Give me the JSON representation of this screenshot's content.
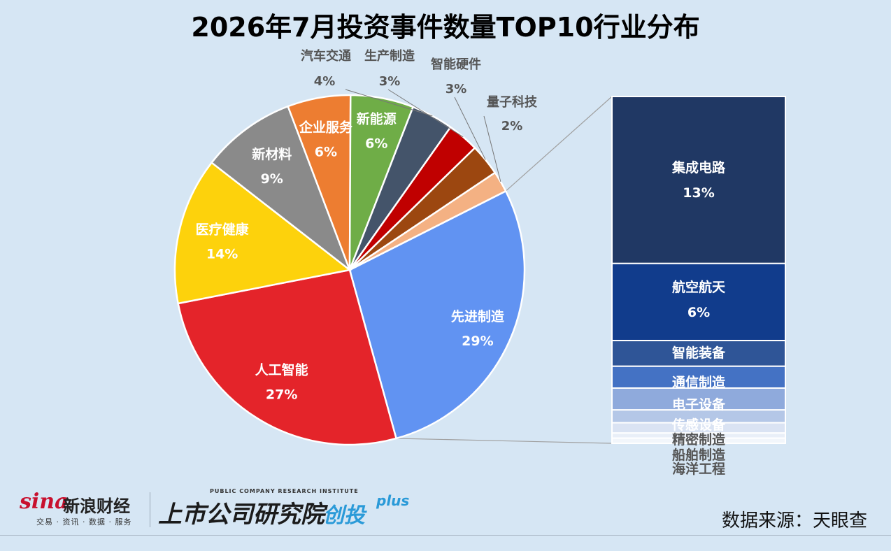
{
  "chart_data": {
    "type": "bar-of-pie",
    "title": "2026年7月投资事件数量TOP10行业分布",
    "pie": {
      "slices": [
        {
          "label": "先进制造",
          "value": 29,
          "value_label": "29%",
          "color": "#6193f2"
        },
        {
          "label": "人工智能",
          "value": 27,
          "value_label": "27%",
          "color": "#e4242a"
        },
        {
          "label": "医疗健康",
          "value": 14,
          "value_label": "14%",
          "color": "#fdd20c"
        },
        {
          "label": "新材料",
          "value": 9,
          "value_label": "9%",
          "color": "#8a8a8a"
        },
        {
          "label": "企业服务",
          "value": 6,
          "value_label": "6%",
          "color": "#ed7d31"
        },
        {
          "label": "新能源",
          "value": 6,
          "value_label": "6%",
          "color": "#6fad47"
        },
        {
          "label": "汽车交通",
          "value": 4,
          "value_label": "4%",
          "color": "#44546a"
        },
        {
          "label": "生产制造",
          "value": 3,
          "value_label": "3%",
          "color": "#c00000"
        },
        {
          "label": "智能硬件",
          "value": 3,
          "value_label": "3%",
          "color": "#9c4710"
        },
        {
          "label": "量子科技",
          "value": 2,
          "value_label": "2%",
          "color": "#f4b183"
        }
      ]
    },
    "bar": {
      "parent": "先进制造",
      "segments": [
        {
          "label": "集成电路",
          "value": 13,
          "value_label": "13%",
          "color": "#203864"
        },
        {
          "label": "航空航天",
          "value": 6,
          "value_label": "6%",
          "color": "#113c8c"
        },
        {
          "label": "智能装备",
          "value": 2,
          "color": "#2f5597"
        },
        {
          "label": "通信制造",
          "value": 1.7,
          "color": "#4472c4"
        },
        {
          "label": "电子设备",
          "value": 1.7,
          "color": "#8faadc"
        },
        {
          "label": "传感设备",
          "value": 1,
          "color": "#b4c7e7"
        },
        {
          "label": "精密制造",
          "value": 0.8,
          "color": "#dae3f3"
        },
        {
          "label": "船舶制造",
          "value": 0.4,
          "color": "#e9eff8"
        },
        {
          "label": "海洋工程",
          "value": 0.4,
          "color": "#f2f6fb"
        }
      ]
    }
  },
  "footer": {
    "sina_brand": "新浪财经",
    "sina_mark": "sina",
    "sina_tagline": "交易 · 资讯 · 数据 · 服务",
    "institute_subtitle": "PUBLIC COMPANY RESEARCH INSTITUTE",
    "institute_name": "上市公司研究院",
    "institute_tag": "创投",
    "institute_plus": "plus",
    "source": "数据来源：天眼查"
  }
}
